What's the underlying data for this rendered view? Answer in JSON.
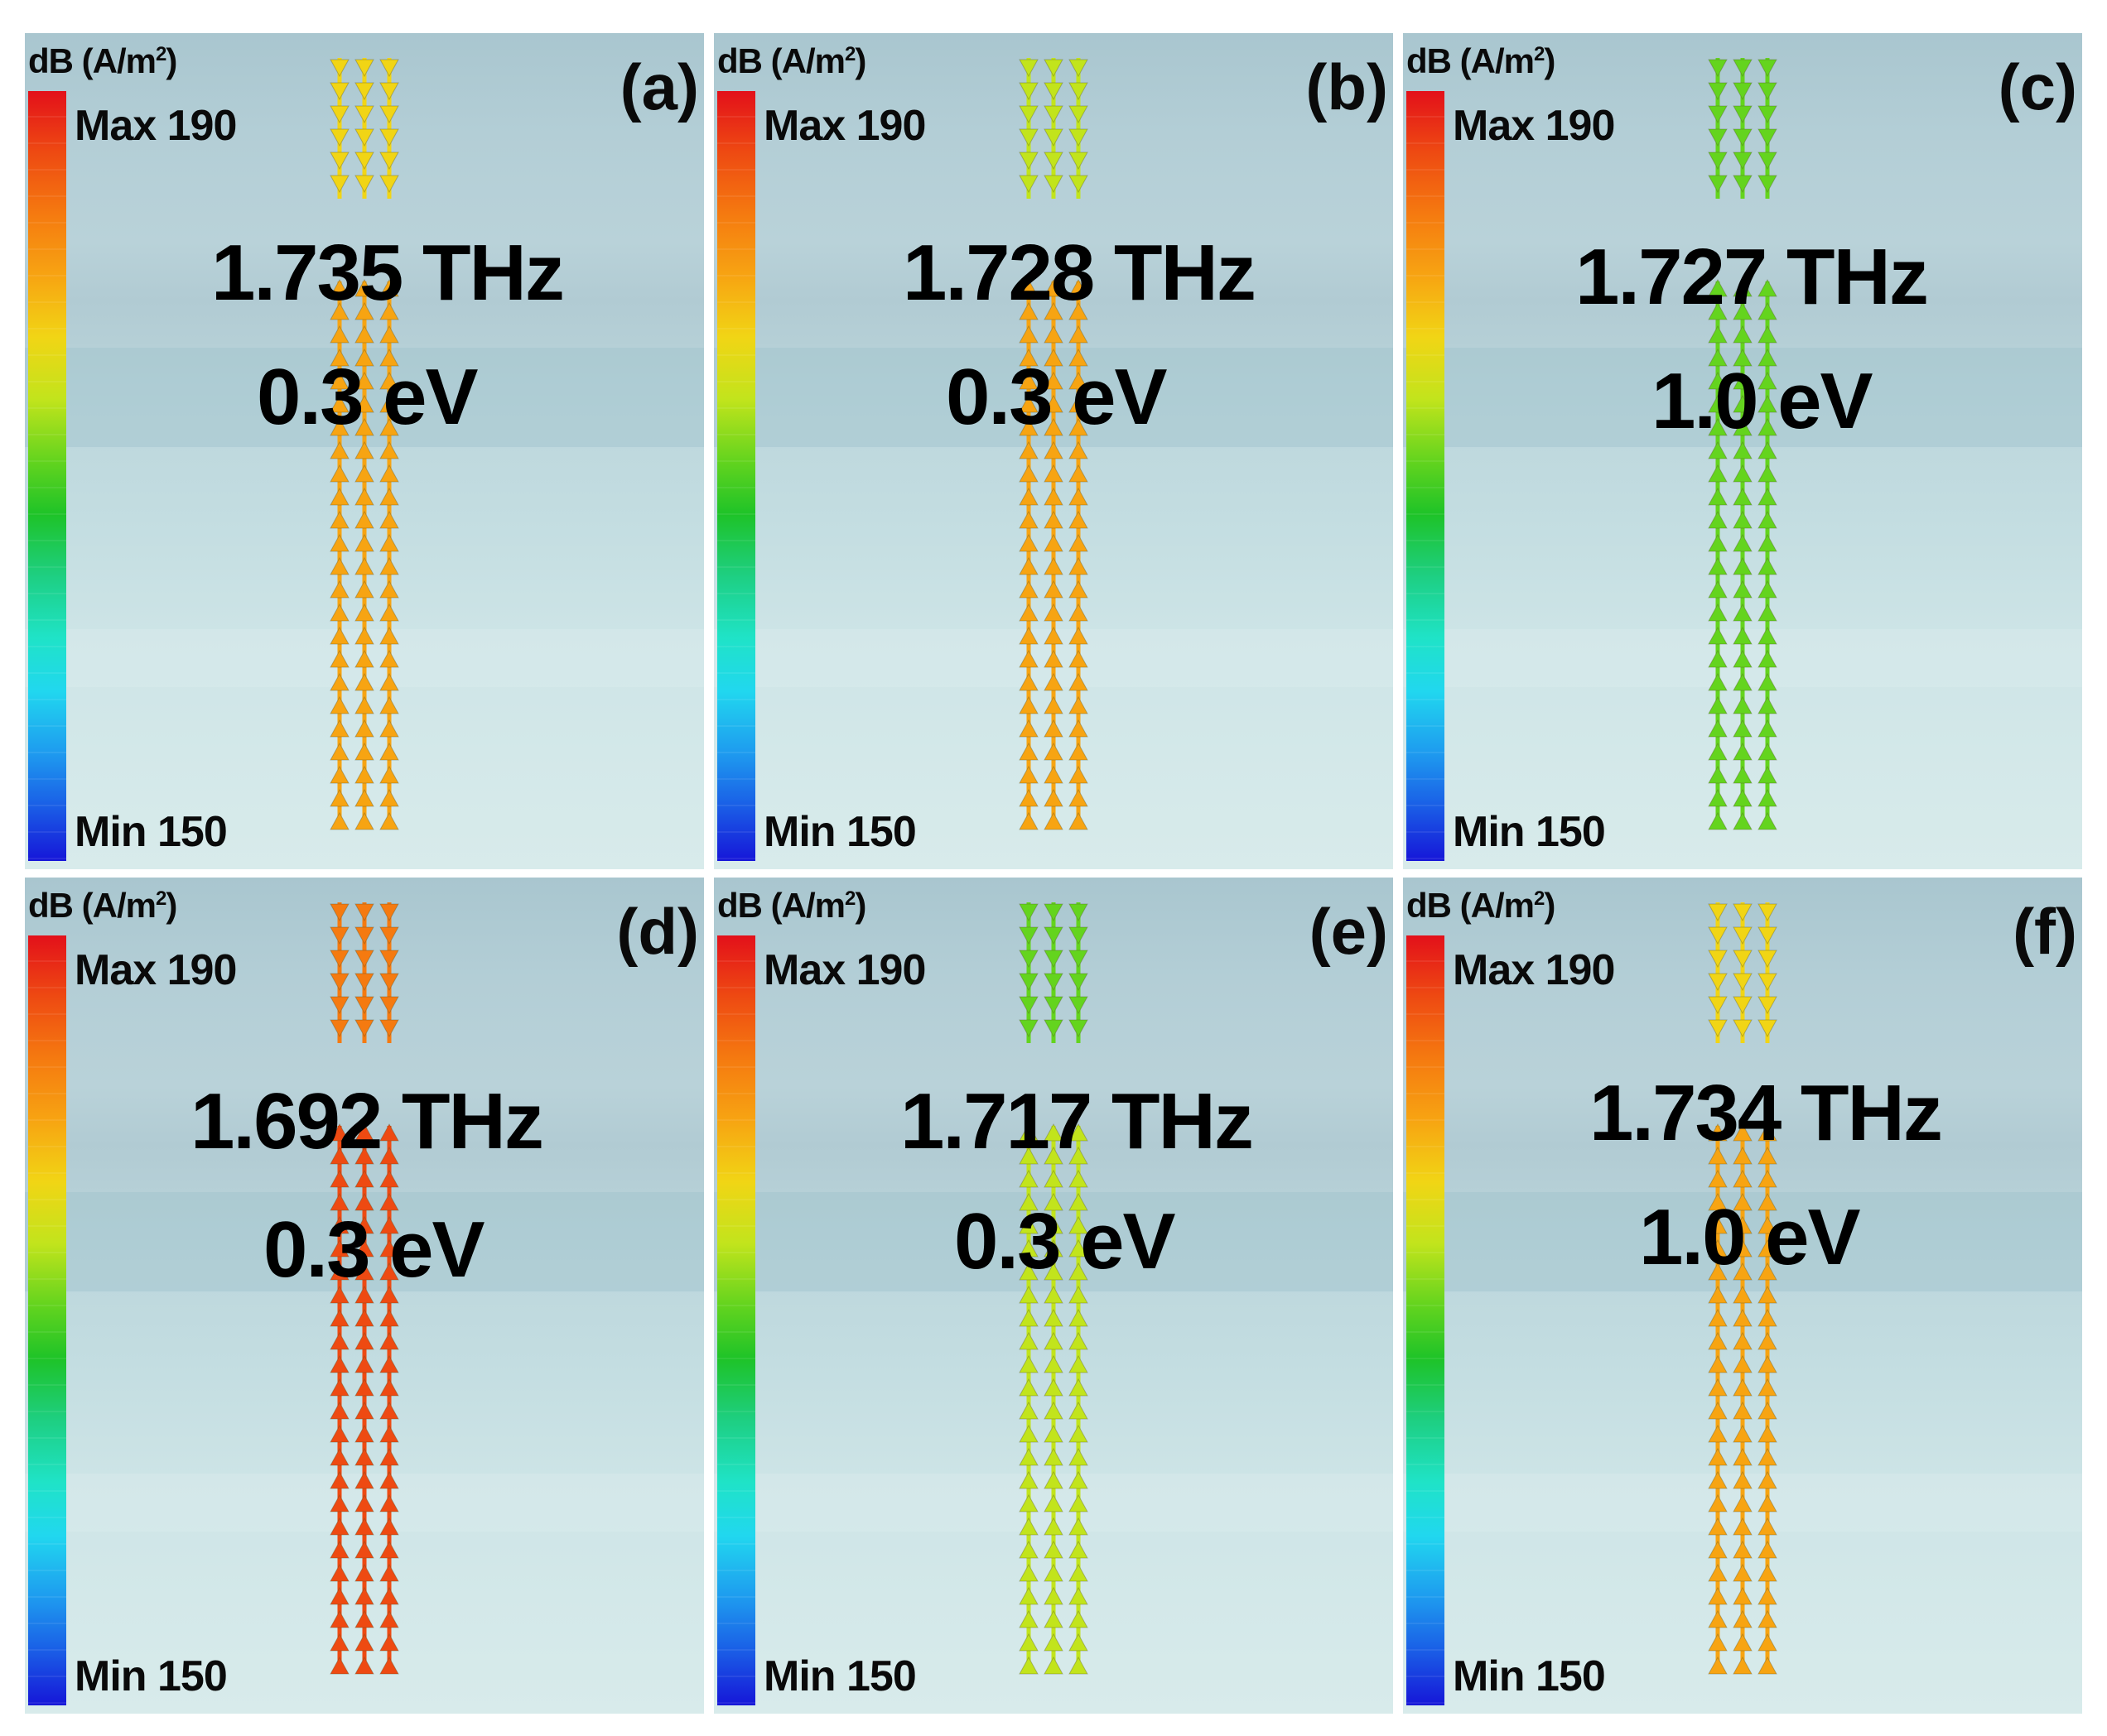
{
  "figure": {
    "colorbar": {
      "unit": "dB (A/m",
      "unit_sup": "2",
      "unit_close": ")",
      "max_label": "Max 190",
      "min_label": "Min 150",
      "max_value": 190,
      "min_value": 150
    },
    "panels": [
      {
        "id": "a",
        "letter": "(a)",
        "frequency": "1.735 THz",
        "fermi_level": "0.3 eV",
        "top_value": 178,
        "bottom_value": 182,
        "top_direction": "down",
        "bottom_direction": "up"
      },
      {
        "id": "b",
        "letter": "(b)",
        "frequency": "1.728 THz",
        "fermi_level": "0.3 eV",
        "top_value": 176,
        "bottom_value": 180,
        "top_direction": "down",
        "bottom_direction": "up"
      },
      {
        "id": "c",
        "letter": "(c)",
        "frequency": "1.727 THz",
        "fermi_level": "1.0 eV",
        "top_value": 172,
        "bottom_value": 172,
        "top_direction": "down",
        "bottom_direction": "up"
      },
      {
        "id": "d",
        "letter": "(d)",
        "frequency": "1.692 THz",
        "fermi_level": "0.3 eV",
        "top_value": 183,
        "bottom_value": 187,
        "top_direction": "down",
        "bottom_direction": "up"
      },
      {
        "id": "e",
        "letter": "(e)",
        "frequency": "1.717 THz",
        "fermi_level": "0.3 eV",
        "top_value": 172,
        "bottom_value": 174,
        "top_direction": "down",
        "bottom_direction": "up"
      },
      {
        "id": "f",
        "letter": "(f)",
        "frequency": "1.734 THz",
        "fermi_level": "1.0 eV",
        "top_value": 178,
        "bottom_value": 181,
        "top_direction": "down",
        "bottom_direction": "up"
      }
    ],
    "colors": {
      "scale": [
        "#1616d8",
        "#1a5de6",
        "#1e9bef",
        "#21d7ef",
        "#1fe3c7",
        "#1ecf82",
        "#1ec328",
        "#64d41e",
        "#c2e41c",
        "#f1d515",
        "#f7a412",
        "#f57a10",
        "#ee4a12",
        "#e3101a"
      ]
    }
  }
}
